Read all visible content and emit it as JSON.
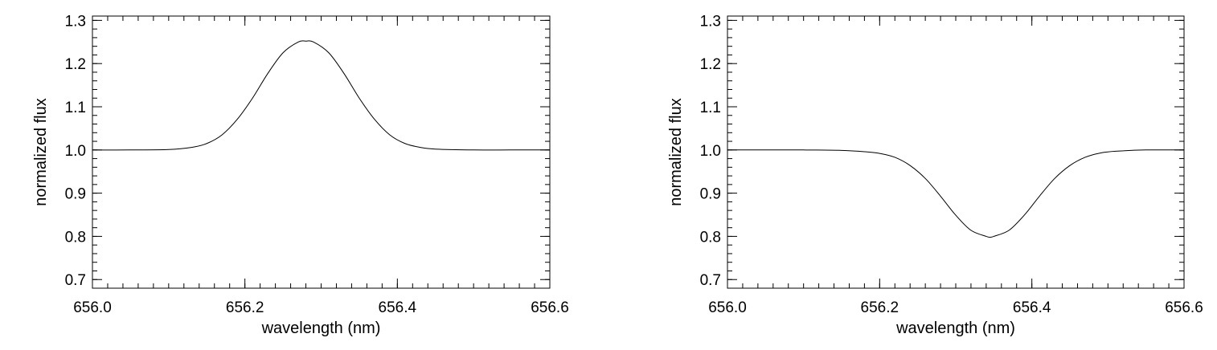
{
  "chart_data": [
    {
      "type": "line",
      "title": "",
      "xlabel": "wavelength (nm)",
      "ylabel": "normalized flux",
      "xlim": [
        656.0,
        656.6
      ],
      "ylim": [
        0.68,
        1.31
      ],
      "x_ticks": [
        656.0,
        656.2,
        656.4,
        656.6
      ],
      "x_tick_labels": [
        "656.0",
        "656.2",
        "656.4",
        "656.6"
      ],
      "y_ticks": [
        0.7,
        0.8,
        0.9,
        1.0,
        1.1,
        1.2,
        1.3
      ],
      "y_tick_labels": [
        "0.7",
        "0.8",
        "0.9",
        "1.0",
        "1.1",
        "1.2",
        "1.3"
      ],
      "grid": false,
      "line_color": "#000000",
      "series": [
        {
          "x": [
            656.0,
            656.05,
            656.1,
            656.13,
            656.15,
            656.17,
            656.19,
            656.21,
            656.23,
            656.25,
            656.27,
            656.28,
            656.29,
            656.31,
            656.33,
            656.35,
            656.37,
            656.39,
            656.41,
            656.43,
            656.45,
            656.5,
            656.55,
            656.6
          ],
          "y": [
            1.0,
            1.0,
            1.001,
            1.006,
            1.015,
            1.035,
            1.071,
            1.12,
            1.177,
            1.225,
            1.25,
            1.252,
            1.25,
            1.225,
            1.177,
            1.12,
            1.071,
            1.035,
            1.015,
            1.006,
            1.002,
            1.0,
            1.0,
            1.0
          ]
        }
      ]
    },
    {
      "type": "line",
      "title": "",
      "xlabel": "wavelength (nm)",
      "ylabel": "normalized flux",
      "xlim": [
        656.0,
        656.6
      ],
      "ylim": [
        0.68,
        1.31
      ],
      "x_ticks": [
        656.0,
        656.2,
        656.4,
        656.6
      ],
      "x_tick_labels": [
        "656.0",
        "656.2",
        "656.4",
        "656.6"
      ],
      "y_ticks": [
        0.7,
        0.8,
        0.9,
        1.0,
        1.1,
        1.2,
        1.3
      ],
      "y_tick_labels": [
        "0.7",
        "0.8",
        "0.9",
        "1.0",
        "1.1",
        "1.2",
        "1.3"
      ],
      "grid": false,
      "line_color": "#000000",
      "series": [
        {
          "x": [
            656.0,
            656.05,
            656.1,
            656.15,
            656.18,
            656.2,
            656.22,
            656.24,
            656.26,
            656.28,
            656.3,
            656.32,
            656.34,
            656.345,
            656.35,
            656.37,
            656.39,
            656.41,
            656.43,
            656.45,
            656.47,
            656.49,
            656.51,
            656.55,
            656.6
          ],
          "y": [
            1.0,
            1.0,
            1.0,
            0.999,
            0.996,
            0.992,
            0.983,
            0.964,
            0.934,
            0.893,
            0.849,
            0.814,
            0.8,
            0.798,
            0.8,
            0.814,
            0.849,
            0.893,
            0.934,
            0.964,
            0.983,
            0.993,
            0.997,
            1.0,
            1.0
          ]
        }
      ]
    }
  ]
}
